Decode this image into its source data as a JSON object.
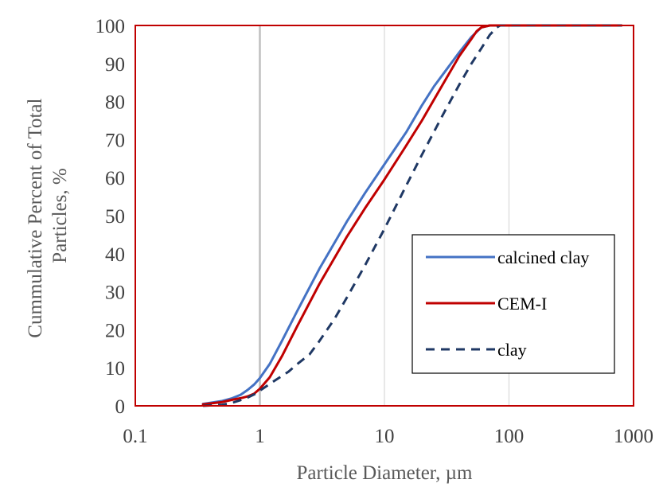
{
  "chart_data": {
    "type": "line",
    "title": "",
    "xlabel": "Particle Diameter, µm",
    "ylabel_lines": [
      "Cummulative Percent of Total",
      "Particles, %"
    ],
    "xscale": "log",
    "xlim": [
      0.1,
      1000
    ],
    "ylim": [
      0,
      100
    ],
    "xticks": [
      0.1,
      1,
      10,
      100,
      1000
    ],
    "xtick_labels": [
      "0.1",
      "1",
      "10",
      "100",
      "1000"
    ],
    "yticks": [
      0,
      10,
      20,
      30,
      40,
      50,
      60,
      70,
      80,
      90,
      100
    ],
    "ytick_labels": [
      "0",
      "10",
      "20",
      "30",
      "40",
      "50",
      "60",
      "70",
      "80",
      "90",
      "100"
    ],
    "grid": "vertical",
    "legend": "right",
    "plot_border_color": "#c00000",
    "series": [
      {
        "name": "calcined clay",
        "color": "#4472c4",
        "dash": "solid",
        "x": [
          0.35,
          0.5,
          0.6,
          0.7,
          0.8,
          0.9,
          1.0,
          1.2,
          1.5,
          2.0,
          3.0,
          5.0,
          7.0,
          10,
          15,
          20,
          25,
          30,
          40,
          50,
          60,
          70,
          100,
          200,
          500,
          800
        ],
        "y": [
          0.5,
          1.3,
          2.0,
          2.9,
          4.2,
          5.6,
          7.3,
          11.0,
          17.0,
          25.0,
          36.0,
          48.5,
          56.0,
          63.5,
          72.0,
          79.0,
          84.0,
          87.5,
          93.0,
          97.0,
          99.5,
          100,
          100,
          100,
          100,
          100
        ]
      },
      {
        "name": "CEM-I",
        "color": "#c00000",
        "dash": "solid",
        "x": [
          0.35,
          0.5,
          0.6,
          0.7,
          0.8,
          0.9,
          1.0,
          1.2,
          1.5,
          2.0,
          3.0,
          5.0,
          7.0,
          10,
          15,
          20,
          30,
          40,
          50,
          55,
          60,
          70,
          100,
          200,
          500,
          800
        ],
        "y": [
          0.4,
          1.0,
          1.6,
          2.0,
          2.5,
          3.2,
          4.5,
          7.5,
          13.0,
          21.0,
          32.0,
          44.5,
          52.0,
          59.5,
          68.5,
          75.0,
          85.0,
          92.0,
          96.5,
          98.5,
          99.5,
          100,
          100,
          100,
          100,
          100
        ]
      },
      {
        "name": "clay",
        "color": "#1f3864",
        "dash": "dashed",
        "x": [
          0.35,
          0.5,
          0.6,
          0.7,
          0.8,
          0.9,
          1.0,
          1.3,
          1.7,
          2.0,
          2.5,
          3.0,
          4.0,
          5.0,
          7.0,
          10,
          15,
          20,
          30,
          40,
          50,
          60,
          70,
          80,
          85,
          100,
          200,
          500,
          800
        ],
        "y": [
          0,
          0.3,
          0.8,
          1.5,
          2.2,
          3.0,
          4.0,
          6.5,
          9.0,
          11.0,
          13.5,
          17.0,
          23.0,
          28.5,
          37.0,
          46.5,
          58.0,
          66.0,
          77.0,
          84.5,
          90.0,
          94.0,
          97.5,
          99.5,
          100,
          100,
          100,
          100,
          100
        ]
      }
    ]
  }
}
